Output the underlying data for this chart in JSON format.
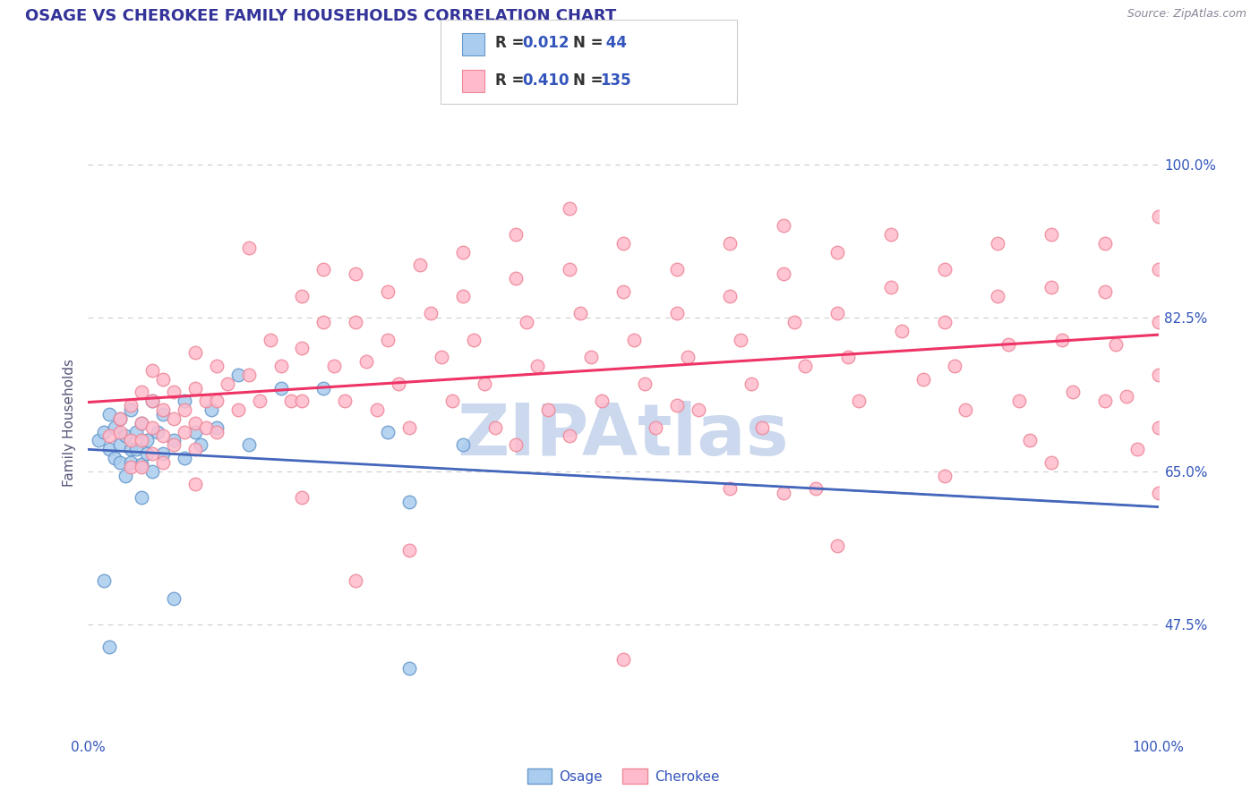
{
  "title": "OSAGE VS CHEROKEE FAMILY HOUSEHOLDS CORRELATION CHART",
  "source_text": "Source: ZipAtlas.com",
  "ylabel": "Family Households",
  "xlim": [
    0.0,
    1.0
  ],
  "ylim": [
    0.35,
    1.06
  ],
  "ytick_labels": [
    "47.5%",
    "65.0%",
    "82.5%",
    "100.0%"
  ],
  "ytick_values": [
    0.475,
    0.65,
    0.825,
    1.0
  ],
  "grid_color": "#cccccc",
  "background_color": "#ffffff",
  "osage_face_color": "#aaccee",
  "osage_edge_color": "#6699cc",
  "cherokee_face_color": "#ffbbcc",
  "cherokee_edge_color": "#ee8899",
  "osage_line_color": "#4466bb",
  "cherokee_line_color": "#ee3366",
  "watermark_color": "#ccd8ee",
  "title_color": "#333399",
  "axis_label_color": "#555577",
  "tick_color": "#3355bb",
  "legend_box_color": "#eeeeee",
  "legend_edge_color": "#cccccc",
  "osage_points": [
    [
      0.01,
      0.685
    ],
    [
      0.015,
      0.695
    ],
    [
      0.02,
      0.675
    ],
    [
      0.025,
      0.665
    ],
    [
      0.02,
      0.715
    ],
    [
      0.025,
      0.7
    ],
    [
      0.03,
      0.68
    ],
    [
      0.03,
      0.66
    ],
    [
      0.03,
      0.71
    ],
    [
      0.035,
      0.69
    ],
    [
      0.04,
      0.675
    ],
    [
      0.04,
      0.66
    ],
    [
      0.035,
      0.645
    ],
    [
      0.04,
      0.72
    ],
    [
      0.045,
      0.695
    ],
    [
      0.045,
      0.675
    ],
    [
      0.05,
      0.658
    ],
    [
      0.05,
      0.62
    ],
    [
      0.05,
      0.705
    ],
    [
      0.055,
      0.685
    ],
    [
      0.055,
      0.67
    ],
    [
      0.06,
      0.65
    ],
    [
      0.06,
      0.73
    ],
    [
      0.065,
      0.695
    ],
    [
      0.07,
      0.67
    ],
    [
      0.07,
      0.715
    ],
    [
      0.08,
      0.685
    ],
    [
      0.09,
      0.665
    ],
    [
      0.09,
      0.73
    ],
    [
      0.1,
      0.695
    ],
    [
      0.105,
      0.68
    ],
    [
      0.115,
      0.72
    ],
    [
      0.12,
      0.7
    ],
    [
      0.14,
      0.76
    ],
    [
      0.15,
      0.68
    ],
    [
      0.18,
      0.745
    ],
    [
      0.22,
      0.745
    ],
    [
      0.28,
      0.695
    ],
    [
      0.3,
      0.615
    ],
    [
      0.35,
      0.68
    ],
    [
      0.015,
      0.525
    ],
    [
      0.08,
      0.505
    ],
    [
      0.3,
      0.425
    ],
    [
      0.02,
      0.45
    ]
  ],
  "cherokee_points": [
    [
      0.02,
      0.69
    ],
    [
      0.03,
      0.71
    ],
    [
      0.03,
      0.695
    ],
    [
      0.04,
      0.725
    ],
    [
      0.04,
      0.685
    ],
    [
      0.04,
      0.655
    ],
    [
      0.05,
      0.74
    ],
    [
      0.05,
      0.705
    ],
    [
      0.05,
      0.685
    ],
    [
      0.05,
      0.655
    ],
    [
      0.06,
      0.765
    ],
    [
      0.06,
      0.73
    ],
    [
      0.06,
      0.7
    ],
    [
      0.06,
      0.67
    ],
    [
      0.07,
      0.755
    ],
    [
      0.07,
      0.72
    ],
    [
      0.07,
      0.69
    ],
    [
      0.07,
      0.66
    ],
    [
      0.08,
      0.74
    ],
    [
      0.08,
      0.71
    ],
    [
      0.08,
      0.68
    ],
    [
      0.09,
      0.72
    ],
    [
      0.09,
      0.695
    ],
    [
      0.1,
      0.785
    ],
    [
      0.1,
      0.745
    ],
    [
      0.1,
      0.705
    ],
    [
      0.1,
      0.675
    ],
    [
      0.11,
      0.73
    ],
    [
      0.11,
      0.7
    ],
    [
      0.12,
      0.77
    ],
    [
      0.12,
      0.73
    ],
    [
      0.12,
      0.695
    ],
    [
      0.13,
      0.75
    ],
    [
      0.14,
      0.72
    ],
    [
      0.15,
      0.905
    ],
    [
      0.15,
      0.76
    ],
    [
      0.16,
      0.73
    ],
    [
      0.17,
      0.8
    ],
    [
      0.18,
      0.77
    ],
    [
      0.19,
      0.73
    ],
    [
      0.2,
      0.85
    ],
    [
      0.2,
      0.79
    ],
    [
      0.2,
      0.73
    ],
    [
      0.22,
      0.88
    ],
    [
      0.22,
      0.82
    ],
    [
      0.23,
      0.77
    ],
    [
      0.24,
      0.73
    ],
    [
      0.25,
      0.875
    ],
    [
      0.25,
      0.82
    ],
    [
      0.26,
      0.775
    ],
    [
      0.27,
      0.72
    ],
    [
      0.28,
      0.855
    ],
    [
      0.28,
      0.8
    ],
    [
      0.29,
      0.75
    ],
    [
      0.3,
      0.7
    ],
    [
      0.31,
      0.885
    ],
    [
      0.32,
      0.83
    ],
    [
      0.33,
      0.78
    ],
    [
      0.34,
      0.73
    ],
    [
      0.35,
      0.9
    ],
    [
      0.35,
      0.85
    ],
    [
      0.36,
      0.8
    ],
    [
      0.37,
      0.75
    ],
    [
      0.38,
      0.7
    ],
    [
      0.4,
      0.92
    ],
    [
      0.4,
      0.87
    ],
    [
      0.41,
      0.82
    ],
    [
      0.42,
      0.77
    ],
    [
      0.43,
      0.72
    ],
    [
      0.45,
      0.95
    ],
    [
      0.45,
      0.88
    ],
    [
      0.46,
      0.83
    ],
    [
      0.47,
      0.78
    ],
    [
      0.48,
      0.73
    ],
    [
      0.5,
      0.91
    ],
    [
      0.5,
      0.855
    ],
    [
      0.51,
      0.8
    ],
    [
      0.52,
      0.75
    ],
    [
      0.53,
      0.7
    ],
    [
      0.55,
      0.88
    ],
    [
      0.55,
      0.83
    ],
    [
      0.56,
      0.78
    ],
    [
      0.57,
      0.72
    ],
    [
      0.6,
      0.91
    ],
    [
      0.6,
      0.85
    ],
    [
      0.61,
      0.8
    ],
    [
      0.62,
      0.75
    ],
    [
      0.63,
      0.7
    ],
    [
      0.65,
      0.93
    ],
    [
      0.65,
      0.875
    ],
    [
      0.66,
      0.82
    ],
    [
      0.67,
      0.77
    ],
    [
      0.68,
      0.63
    ],
    [
      0.7,
      0.9
    ],
    [
      0.7,
      0.83
    ],
    [
      0.71,
      0.78
    ],
    [
      0.72,
      0.73
    ],
    [
      0.75,
      0.92
    ],
    [
      0.75,
      0.86
    ],
    [
      0.76,
      0.81
    ],
    [
      0.78,
      0.755
    ],
    [
      0.8,
      0.88
    ],
    [
      0.8,
      0.82
    ],
    [
      0.81,
      0.77
    ],
    [
      0.82,
      0.72
    ],
    [
      0.85,
      0.91
    ],
    [
      0.85,
      0.85
    ],
    [
      0.86,
      0.795
    ],
    [
      0.87,
      0.73
    ],
    [
      0.88,
      0.685
    ],
    [
      0.9,
      0.92
    ],
    [
      0.9,
      0.86
    ],
    [
      0.91,
      0.8
    ],
    [
      0.92,
      0.74
    ],
    [
      0.95,
      0.91
    ],
    [
      0.95,
      0.855
    ],
    [
      0.96,
      0.795
    ],
    [
      0.97,
      0.735
    ],
    [
      0.98,
      0.675
    ],
    [
      1.0,
      0.94
    ],
    [
      1.0,
      0.88
    ],
    [
      1.0,
      0.82
    ],
    [
      1.0,
      0.76
    ],
    [
      1.0,
      0.7
    ],
    [
      0.3,
      0.56
    ],
    [
      0.5,
      0.435
    ],
    [
      0.2,
      0.62
    ],
    [
      0.4,
      0.68
    ],
    [
      0.1,
      0.635
    ],
    [
      0.25,
      0.525
    ],
    [
      0.6,
      0.63
    ],
    [
      0.8,
      0.645
    ],
    [
      0.9,
      0.66
    ],
    [
      0.55,
      0.725
    ],
    [
      0.65,
      0.625
    ],
    [
      0.95,
      0.73
    ],
    [
      0.7,
      0.565
    ],
    [
      0.45,
      0.69
    ],
    [
      1.0,
      0.625
    ]
  ]
}
